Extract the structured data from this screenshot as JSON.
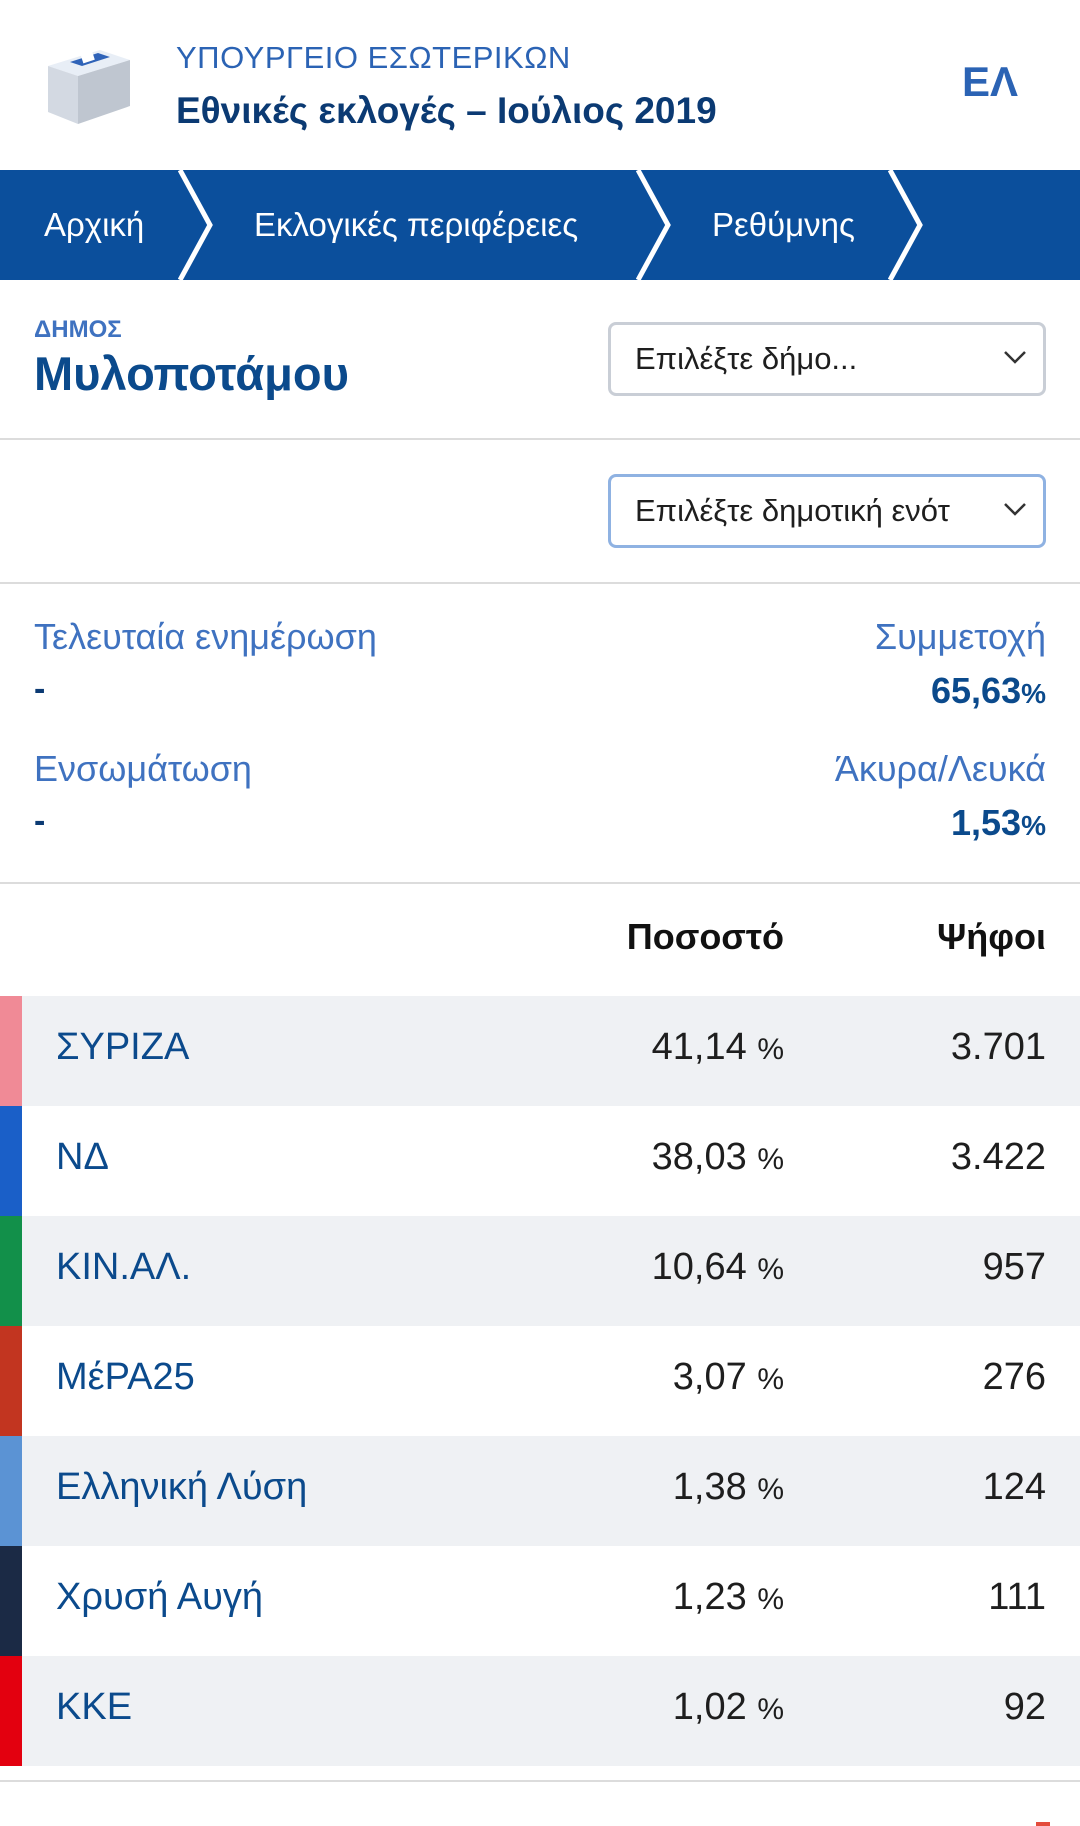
{
  "header": {
    "ministry": "ΥΠΟΥΡΓΕΙΟ ΕΣΩΤΕΡΙΚΩΝ",
    "election": "Εθνικές εκλογές – Ιούλιος 2019",
    "lang": "ΕΛ",
    "logo_icon": "ballot-box-icon"
  },
  "breadcrumb": [
    "Αρχική",
    "Εκλογικές περιφέρειες",
    "Ρεθύμνης"
  ],
  "municipality": {
    "kicker": "ΔΗΜΟΣ",
    "name": "Μυλοποτάμου",
    "select_placeholder": "Επιλέξτε δήμο...",
    "unit_select_placeholder": "Επιλέξτε δημοτική ενότ"
  },
  "stats": {
    "last_update_label": "Τελευταία ενημέρωση",
    "last_update_value": "-",
    "turnout_label": "Συμμετοχή",
    "turnout_value": "65,63",
    "integration_label": "Ενσωμάτωση",
    "integration_value": "-",
    "invalid_label": "Άκυρα/Λευκά",
    "invalid_value": "1,53",
    "percent_symbol": "%"
  },
  "table": {
    "col_percent": "Ποσοστό",
    "col_votes": "Ψήφοι",
    "percent_symbol": "%",
    "rows": [
      {
        "party": "ΣΥΡΙΖΑ",
        "percent": "41,14",
        "votes": "3.701",
        "color": "#f08a96"
      },
      {
        "party": "ΝΔ",
        "percent": "38,03",
        "votes": "3.422",
        "color": "#1a5fc8"
      },
      {
        "party": "ΚΙΝ.ΑΛ.",
        "percent": "10,64",
        "votes": "957",
        "color": "#12904a"
      },
      {
        "party": "ΜέΡΑ25",
        "percent": "3,07",
        "votes": "276",
        "color": "#c23520"
      },
      {
        "party": "Ελληνική Λύση",
        "percent": "1,38",
        "votes": "124",
        "color": "#5b93d4"
      },
      {
        "party": "Χρυσή Αυγή",
        "percent": "1,23",
        "votes": "111",
        "color": "#1b2a45"
      },
      {
        "party": "ΚΚΕ",
        "percent": "1,02",
        "votes": "92",
        "color": "#e3000f"
      }
    ]
  },
  "colors": {
    "brand_blue": "#0b4f9c",
    "accent_blue": "#3f72c0",
    "row_stripe": "#eff1f4"
  }
}
